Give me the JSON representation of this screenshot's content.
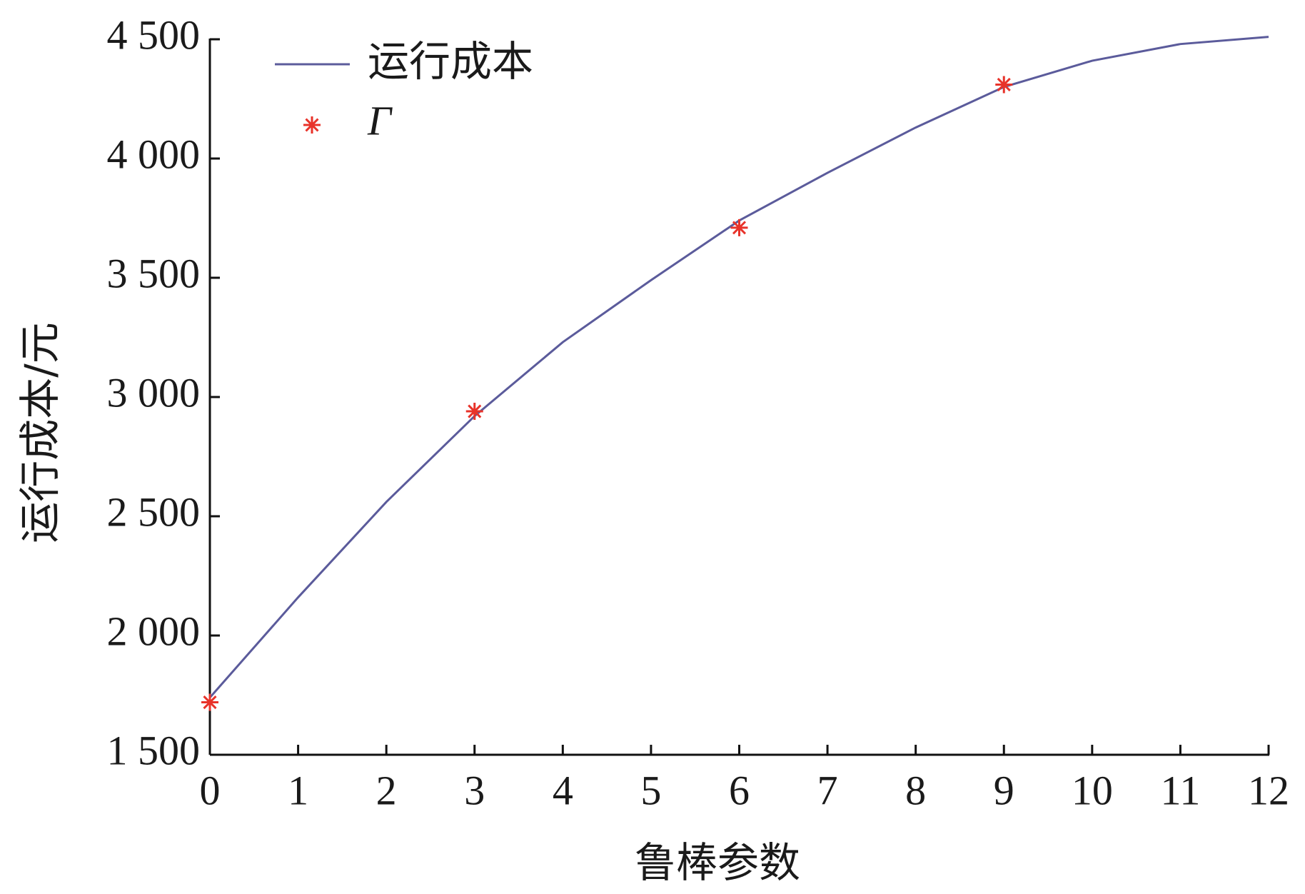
{
  "chart_data": {
    "type": "line",
    "x_label": "鲁棒参数",
    "y_label": "运行成本/元",
    "series": [
      {
        "name": "运行成本",
        "color": "#5b5b9b",
        "mode": "line",
        "x": [
          0,
          1,
          2,
          3,
          4,
          5,
          6,
          7,
          8,
          9,
          10,
          11,
          12
        ],
        "values": [
          1740,
          2160,
          2560,
          2920,
          3230,
          3490,
          3740,
          3940,
          4130,
          4300,
          4410,
          4480,
          4510
        ]
      },
      {
        "name": "Γ",
        "color": "#e8332a",
        "mode": "markers",
        "x": [
          0,
          3,
          6,
          9
        ],
        "values": [
          1720,
          2940,
          3710,
          4310
        ]
      }
    ],
    "xlim": [
      0,
      12
    ],
    "xticks": [
      0,
      1,
      2,
      3,
      4,
      5,
      6,
      7,
      8,
      9,
      10,
      11,
      12
    ],
    "ylim": [
      1500,
      4500
    ],
    "yticks": [
      {
        "value": 1500,
        "label": "1 500"
      },
      {
        "value": 2000,
        "label": "2 000"
      },
      {
        "value": 2500,
        "label": "2 500"
      },
      {
        "value": 3000,
        "label": "3 000"
      },
      {
        "value": 3500,
        "label": "3 500"
      },
      {
        "value": 4000,
        "label": "4 000"
      },
      {
        "value": 4500,
        "label": "4 500"
      }
    ],
    "legend": "upper left",
    "grid": false
  }
}
